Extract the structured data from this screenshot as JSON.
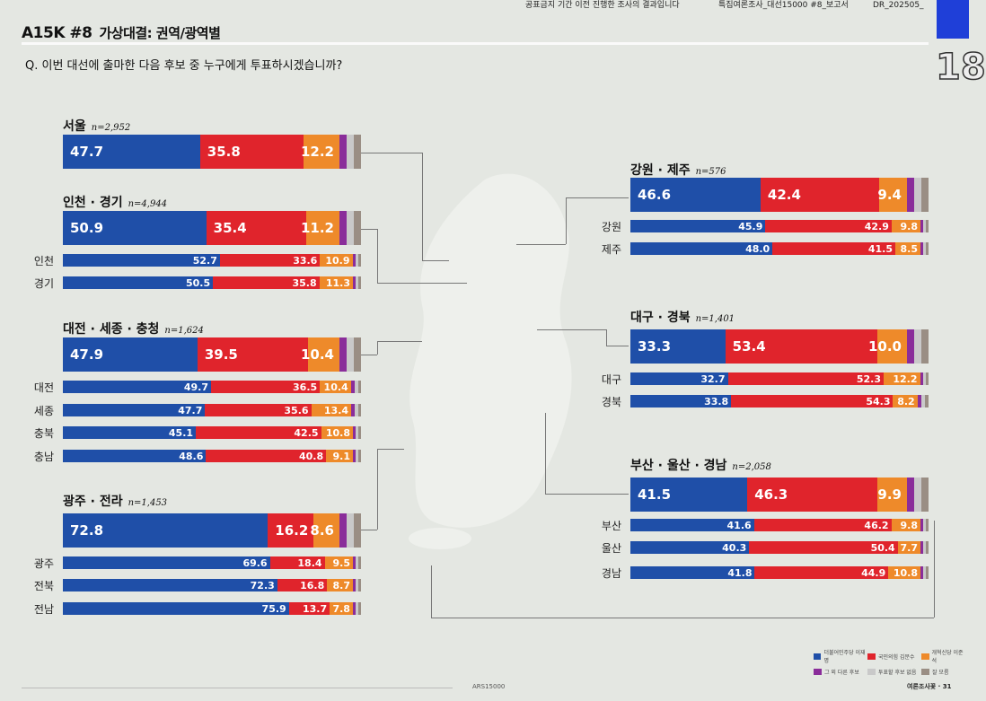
{
  "header": {
    "note1": "공표금지 기간 이전 진행한 조사의 결과입니다",
    "note2": "특집여론조사_대선15000 #8_보고서",
    "note3": "DR_202505_",
    "code": "A15K #8",
    "title": "가상대결: 권역/광역별",
    "question": "Q. 이번 대선에 출마한 다음 후보 중 누구에게 투표하시겠습니까?",
    "page_badge": "18"
  },
  "colors": {
    "dem": "#1f4fa8",
    "ppp": "#e0242c",
    "reform": "#ee8a2a",
    "other": "#8a2d9a",
    "none": "#c9c9c9",
    "dk": "#9a8e84"
  },
  "legend": [
    {
      "label": "더불어민주당 이재명",
      "color": "#1f4fa8"
    },
    {
      "label": "국민의힘 김문수",
      "color": "#e0242c"
    },
    {
      "label": "개혁신당 이준석",
      "color": "#ee8a2a"
    },
    {
      "label": "그 외 다른 후보",
      "color": "#8a2d9a"
    },
    {
      "label": "투표할 후보 없음",
      "color": "#c9c9c9"
    },
    {
      "label": "잘 모름",
      "color": "#9a8e84"
    }
  ],
  "groups": [
    {
      "name": "서울",
      "n": "n=2,952",
      "total": [
        47.7,
        35.8,
        12.2
      ],
      "rows": []
    },
    {
      "name": "인천 · 경기",
      "n": "n=4,944",
      "total": [
        50.9,
        35.4,
        11.2
      ],
      "rows": [
        {
          "name": "인천",
          "v": [
            52.7,
            33.6,
            10.9
          ]
        },
        {
          "name": "경기",
          "v": [
            50.5,
            35.8,
            11.3
          ]
        }
      ]
    },
    {
      "name": "대전 · 세종 · 충청",
      "n": "n=1,624",
      "total": [
        47.9,
        39.5,
        10.4
      ],
      "rows": [
        {
          "name": "대전",
          "v": [
            49.7,
            36.5,
            10.4
          ]
        },
        {
          "name": "세종",
          "v": [
            47.7,
            35.6,
            13.4
          ]
        },
        {
          "name": "충북",
          "v": [
            45.1,
            42.5,
            10.8
          ]
        },
        {
          "name": "충남",
          "v": [
            48.6,
            40.8,
            9.1
          ]
        }
      ]
    },
    {
      "name": "광주 · 전라",
      "n": "n=1,453",
      "total": [
        72.8,
        16.2,
        8.6
      ],
      "rows": [
        {
          "name": "광주",
          "v": [
            69.6,
            18.4,
            9.5
          ]
        },
        {
          "name": "전북",
          "v": [
            72.3,
            16.8,
            8.7
          ]
        },
        {
          "name": "전남",
          "v": [
            75.9,
            13.7,
            7.8
          ]
        }
      ]
    },
    {
      "name": "강원 · 제주",
      "n": "n=576",
      "total": [
        46.6,
        42.4,
        9.4
      ],
      "rows": [
        {
          "name": "강원",
          "v": [
            45.9,
            42.9,
            9.8
          ]
        },
        {
          "name": "제주",
          "v": [
            48.0,
            41.5,
            8.5
          ]
        }
      ]
    },
    {
      "name": "대구 · 경북",
      "n": "n=1,401",
      "total": [
        33.3,
        53.4,
        10.0
      ],
      "rows": [
        {
          "name": "대구",
          "v": [
            32.7,
            52.3,
            12.2
          ]
        },
        {
          "name": "경북",
          "v": [
            33.8,
            54.3,
            8.2
          ]
        }
      ]
    },
    {
      "name": "부산 · 울산 · 경남",
      "n": "n=2,058",
      "total": [
        41.5,
        46.3,
        9.9
      ],
      "rows": [
        {
          "name": "부산",
          "v": [
            41.6,
            46.2,
            9.8
          ]
        },
        {
          "name": "울산",
          "v": [
            40.3,
            50.4,
            7.7
          ]
        },
        {
          "name": "경남",
          "v": [
            41.8,
            44.9,
            10.8
          ]
        }
      ]
    }
  ],
  "footer": {
    "source": "ARS15000",
    "brand": "여론조사꽃 · 31"
  }
}
